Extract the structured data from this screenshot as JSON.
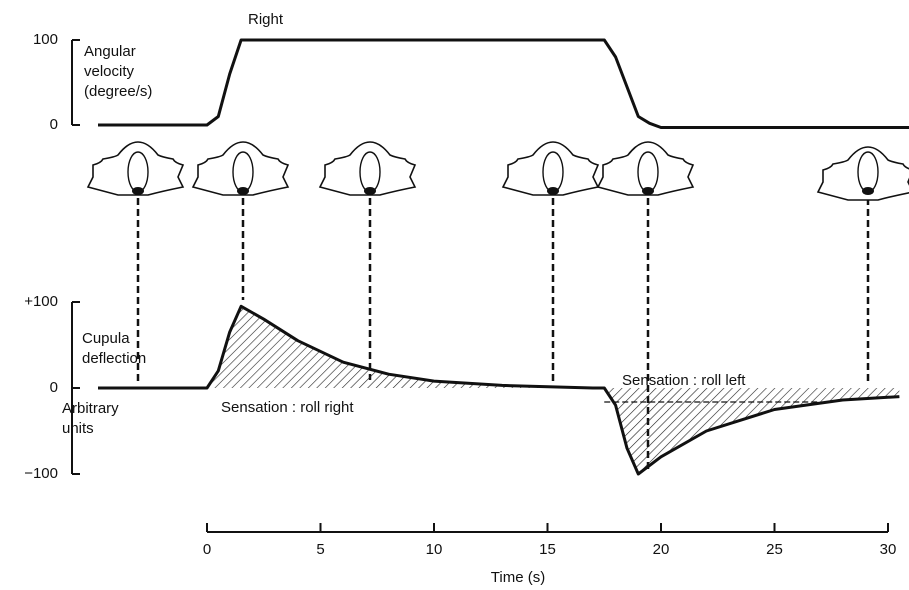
{
  "chart_data": [
    {
      "type": "line",
      "title": "Right",
      "ylabel": [
        "Angular",
        "velocity",
        "(degree/s)"
      ],
      "x": [
        -4.8,
        0,
        0.5,
        1,
        1.5,
        17.5,
        18,
        19,
        19.5,
        20,
        31
      ],
      "series": [
        {
          "name": "Angular velocity",
          "color": "#111111",
          "values": [
            0,
            0,
            10,
            60,
            100,
            100,
            80,
            10,
            2,
            -3,
            -3
          ]
        }
      ],
      "xlim": [
        -6,
        30.5
      ],
      "ylim": [
        0,
        100
      ],
      "yticks": [
        0,
        100
      ]
    },
    {
      "type": "line",
      "ylabel": [
        "Cupula",
        "deflection"
      ],
      "units_label": [
        "Arbitrary",
        "units"
      ],
      "xlabel": "Time (s)",
      "annotations": [
        "Sensation : roll right",
        "Sensation : roll left"
      ],
      "x": [
        -4.8,
        0,
        0.5,
        1,
        1.5,
        2.5,
        4,
        6,
        8,
        10,
        13,
        17,
        17.5,
        18,
        18.5,
        19,
        20,
        22,
        25,
        28,
        30.5
      ],
      "series": [
        {
          "name": "Cupula deflection",
          "color": "#111111",
          "values": [
            0,
            0,
            20,
            65,
            95,
            80,
            55,
            30,
            16,
            8,
            3,
            0,
            0,
            -20,
            -70,
            -100,
            -80,
            -50,
            -25,
            -14,
            -10
          ]
        }
      ],
      "xlim": [
        -6,
        30.5
      ],
      "xticks": [
        0,
        5,
        10,
        15,
        20,
        25,
        30
      ],
      "ylim": [
        -100,
        100
      ],
      "yticks": [
        {
          "value": 100,
          "label": "+100"
        },
        0,
        {
          "value": -100,
          "label": "−100"
        }
      ]
    }
  ]
}
